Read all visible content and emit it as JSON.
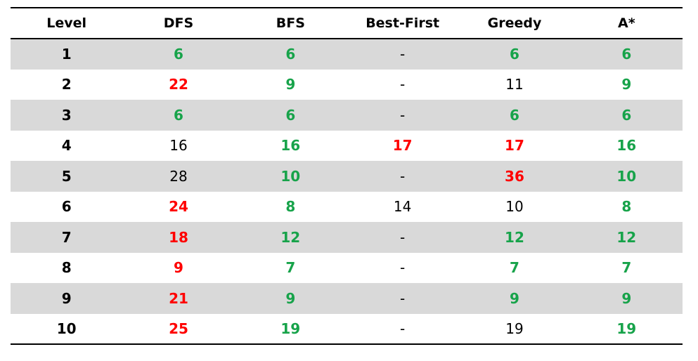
{
  "table": {
    "headers": [
      "Level",
      "DFS",
      "BFS",
      "Best-First",
      "Greedy",
      "A*"
    ],
    "rows": [
      {
        "cells": [
          {
            "text": "1",
            "status": "level"
          },
          {
            "text": "6",
            "status": "good"
          },
          {
            "text": "6",
            "status": "good"
          },
          {
            "text": "-",
            "status": "empty"
          },
          {
            "text": "6",
            "status": "good"
          },
          {
            "text": "6",
            "status": "good"
          }
        ]
      },
      {
        "cells": [
          {
            "text": "2",
            "status": "level"
          },
          {
            "text": "22",
            "status": "bad"
          },
          {
            "text": "9",
            "status": "good"
          },
          {
            "text": "-",
            "status": "empty"
          },
          {
            "text": "11",
            "status": "neutral"
          },
          {
            "text": "9",
            "status": "good"
          }
        ]
      },
      {
        "cells": [
          {
            "text": "3",
            "status": "level"
          },
          {
            "text": "6",
            "status": "good"
          },
          {
            "text": "6",
            "status": "good"
          },
          {
            "text": "-",
            "status": "empty"
          },
          {
            "text": "6",
            "status": "good"
          },
          {
            "text": "6",
            "status": "good"
          }
        ]
      },
      {
        "cells": [
          {
            "text": "4",
            "status": "level"
          },
          {
            "text": "16",
            "status": "neutral"
          },
          {
            "text": "16",
            "status": "good"
          },
          {
            "text": "17",
            "status": "bad"
          },
          {
            "text": "17",
            "status": "bad"
          },
          {
            "text": "16",
            "status": "good"
          }
        ]
      },
      {
        "cells": [
          {
            "text": "5",
            "status": "level"
          },
          {
            "text": "28",
            "status": "neutral"
          },
          {
            "text": "10",
            "status": "good"
          },
          {
            "text": "-",
            "status": "empty"
          },
          {
            "text": "36",
            "status": "bad"
          },
          {
            "text": "10",
            "status": "good"
          }
        ]
      },
      {
        "cells": [
          {
            "text": "6",
            "status": "level"
          },
          {
            "text": "24",
            "status": "bad"
          },
          {
            "text": "8",
            "status": "good"
          },
          {
            "text": "14",
            "status": "neutral"
          },
          {
            "text": "10",
            "status": "neutral"
          },
          {
            "text": "8",
            "status": "good"
          }
        ]
      },
      {
        "cells": [
          {
            "text": "7",
            "status": "level"
          },
          {
            "text": "18",
            "status": "bad"
          },
          {
            "text": "12",
            "status": "good"
          },
          {
            "text": "-",
            "status": "empty"
          },
          {
            "text": "12",
            "status": "good"
          },
          {
            "text": "12",
            "status": "good"
          }
        ]
      },
      {
        "cells": [
          {
            "text": "8",
            "status": "level"
          },
          {
            "text": "9",
            "status": "bad"
          },
          {
            "text": "7",
            "status": "good"
          },
          {
            "text": "-",
            "status": "empty"
          },
          {
            "text": "7",
            "status": "good"
          },
          {
            "text": "7",
            "status": "good"
          }
        ]
      },
      {
        "cells": [
          {
            "text": "9",
            "status": "level"
          },
          {
            "text": "21",
            "status": "bad"
          },
          {
            "text": "9",
            "status": "good"
          },
          {
            "text": "-",
            "status": "empty"
          },
          {
            "text": "9",
            "status": "good"
          },
          {
            "text": "9",
            "status": "good"
          }
        ]
      },
      {
        "cells": [
          {
            "text": "10",
            "status": "level"
          },
          {
            "text": "25",
            "status": "bad"
          },
          {
            "text": "19",
            "status": "good"
          },
          {
            "text": "-",
            "status": "empty"
          },
          {
            "text": "19",
            "status": "neutral"
          },
          {
            "text": "19",
            "status": "good"
          }
        ]
      }
    ]
  },
  "colors": {
    "good": "#17a34a",
    "bad": "#ff0000",
    "neutral": "#000000",
    "row_shade": "#d9d9d9",
    "rule": "#000000"
  }
}
